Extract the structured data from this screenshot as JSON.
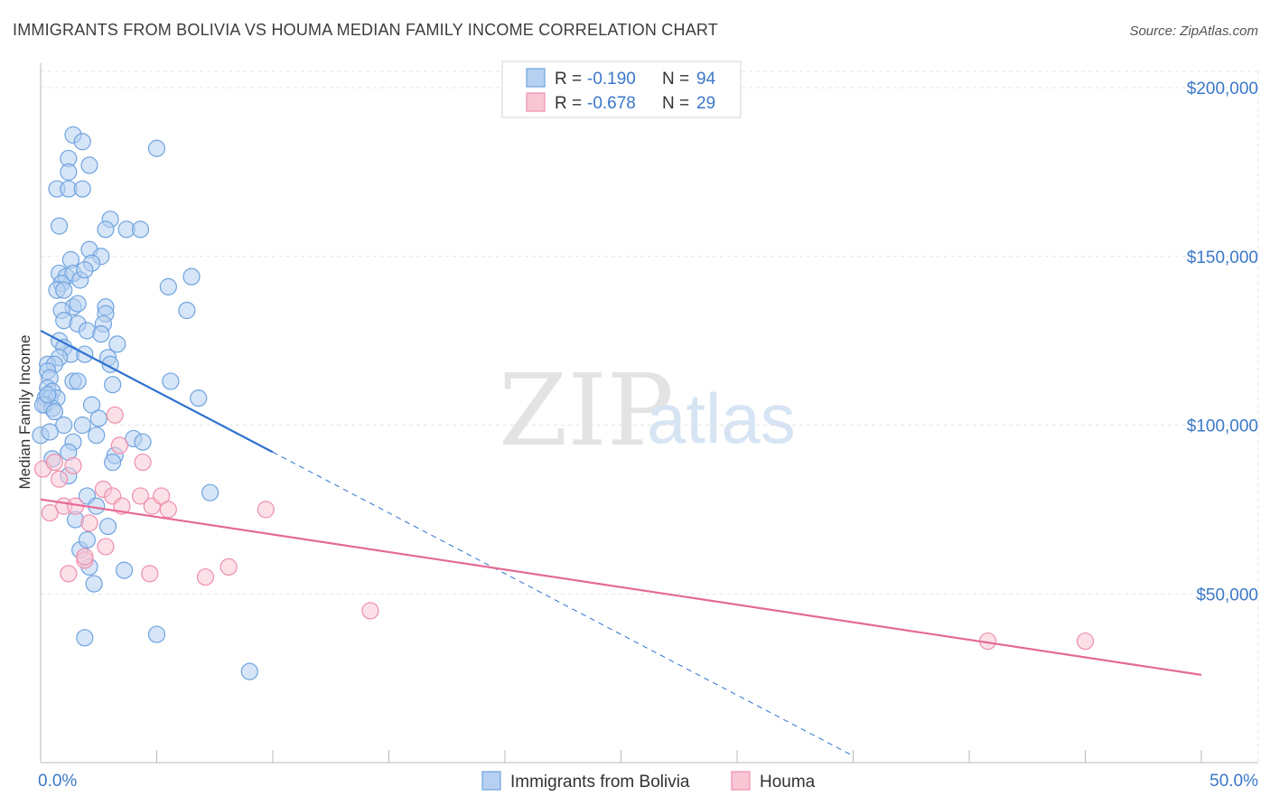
{
  "chart_data": {
    "type": "scatter",
    "title": "IMMIGRANTS FROM BOLIVIA VS HOUMA MEDIAN FAMILY INCOME CORRELATION CHART",
    "source": "Source: ZipAtlas.com",
    "xlabel": "",
    "ylabel": "Median Family Income",
    "xlim": [
      0,
      50
    ],
    "ylim": [
      0,
      210000
    ],
    "x_tick_labels": [
      "0.0%",
      "50.0%"
    ],
    "y_tick_labels": [
      "$50,000",
      "$100,000",
      "$150,000",
      "$200,000"
    ],
    "y_ticks": [
      50000,
      100000,
      150000,
      200000
    ],
    "grid": true,
    "watermark": {
      "zip": "ZIP",
      "atlas": "atlas"
    },
    "legend": {
      "entries": [
        {
          "r_label": "R =",
          "r_value": "-0.190",
          "n_label": "N =",
          "n_value": "94"
        },
        {
          "r_label": "R =",
          "r_value": "-0.678",
          "n_label": "N =",
          "n_value": "29"
        }
      ]
    },
    "series": [
      {
        "name": "Immigrants from Bolivia",
        "color": "#6fa3e0",
        "fill": "#b5d0f0",
        "line_color": "#2f72cf",
        "trend": {
          "x0": 0,
          "y0": 128000,
          "x1": 10,
          "y1": 92000,
          "dash_to_x": 35
        },
        "points": [
          [
            1.4,
            186000
          ],
          [
            1.8,
            184000
          ],
          [
            5.0,
            182000
          ],
          [
            1.2,
            179000
          ],
          [
            2.1,
            177000
          ],
          [
            1.2,
            175000
          ],
          [
            0.7,
            170000
          ],
          [
            1.2,
            170000
          ],
          [
            1.8,
            170000
          ],
          [
            0.8,
            159000
          ],
          [
            3.0,
            161000
          ],
          [
            2.8,
            158000
          ],
          [
            3.7,
            158000
          ],
          [
            4.3,
            158000
          ],
          [
            2.1,
            152000
          ],
          [
            1.3,
            149000
          ],
          [
            2.6,
            150000
          ],
          [
            2.2,
            148000
          ],
          [
            6.5,
            144000
          ],
          [
            0.8,
            145000
          ],
          [
            1.1,
            144000
          ],
          [
            1.4,
            145000
          ],
          [
            0.9,
            142000
          ],
          [
            1.7,
            143000
          ],
          [
            1.9,
            146000
          ],
          [
            0.7,
            140000
          ],
          [
            1.0,
            140000
          ],
          [
            5.5,
            141000
          ],
          [
            1.4,
            135000
          ],
          [
            1.6,
            136000
          ],
          [
            2.8,
            135000
          ],
          [
            0.9,
            134000
          ],
          [
            6.3,
            134000
          ],
          [
            2.8,
            133000
          ],
          [
            1.0,
            131000
          ],
          [
            1.6,
            130000
          ],
          [
            2.7,
            130000
          ],
          [
            2.0,
            128000
          ],
          [
            2.6,
            127000
          ],
          [
            0.8,
            125000
          ],
          [
            3.3,
            124000
          ],
          [
            1.0,
            123000
          ],
          [
            1.3,
            121000
          ],
          [
            1.9,
            121000
          ],
          [
            0.8,
            120000
          ],
          [
            2.9,
            120000
          ],
          [
            3.0,
            118000
          ],
          [
            0.3,
            118000
          ],
          [
            0.6,
            118000
          ],
          [
            0.3,
            116000
          ],
          [
            0.4,
            114000
          ],
          [
            1.4,
            113000
          ],
          [
            1.6,
            113000
          ],
          [
            3.1,
            112000
          ],
          [
            5.6,
            113000
          ],
          [
            0.3,
            111000
          ],
          [
            0.5,
            110000
          ],
          [
            0.2,
            108000
          ],
          [
            0.4,
            108000
          ],
          [
            0.7,
            108000
          ],
          [
            6.8,
            108000
          ],
          [
            0.2,
            106000
          ],
          [
            2.2,
            106000
          ],
          [
            0.5,
            105000
          ],
          [
            2.5,
            102000
          ],
          [
            1.8,
            100000
          ],
          [
            0.0,
            97000
          ],
          [
            2.4,
            97000
          ],
          [
            4.0,
            96000
          ],
          [
            4.4,
            95000
          ],
          [
            1.4,
            95000
          ],
          [
            3.2,
            91000
          ],
          [
            3.1,
            89000
          ],
          [
            0.5,
            90000
          ],
          [
            1.2,
            85000
          ],
          [
            7.3,
            80000
          ],
          [
            2.0,
            79000
          ],
          [
            2.4,
            76000
          ],
          [
            1.5,
            72000
          ],
          [
            2.9,
            70000
          ],
          [
            1.7,
            63000
          ],
          [
            2.1,
            58000
          ],
          [
            3.6,
            57000
          ],
          [
            2.3,
            53000
          ],
          [
            1.9,
            37000
          ],
          [
            5.0,
            38000
          ],
          [
            9.0,
            27000
          ],
          [
            0.1,
            106000
          ],
          [
            0.3,
            109000
          ],
          [
            0.6,
            104000
          ],
          [
            1.2,
            92000
          ],
          [
            2.0,
            66000
          ],
          [
            1.0,
            100000
          ],
          [
            0.4,
            98000
          ]
        ]
      },
      {
        "name": "Houma",
        "color": "#ee8fab",
        "fill": "#f8c6d5",
        "line_color": "#e46a95",
        "trend": {
          "x0": 0,
          "y0": 78000,
          "x1": 50,
          "y1": 26000
        },
        "points": [
          [
            0.1,
            87000
          ],
          [
            0.6,
            89000
          ],
          [
            0.8,
            84000
          ],
          [
            0.4,
            74000
          ],
          [
            1.0,
            76000
          ],
          [
            1.5,
            76000
          ],
          [
            2.1,
            71000
          ],
          [
            2.7,
            81000
          ],
          [
            3.1,
            79000
          ],
          [
            3.5,
            76000
          ],
          [
            4.3,
            79000
          ],
          [
            4.8,
            76000
          ],
          [
            5.2,
            79000
          ],
          [
            5.5,
            75000
          ],
          [
            3.2,
            103000
          ],
          [
            3.4,
            94000
          ],
          [
            4.4,
            89000
          ],
          [
            1.4,
            88000
          ],
          [
            1.9,
            60000
          ],
          [
            2.8,
            64000
          ],
          [
            1.2,
            56000
          ],
          [
            4.7,
            56000
          ],
          [
            7.1,
            55000
          ],
          [
            8.1,
            58000
          ],
          [
            9.7,
            75000
          ],
          [
            14.2,
            45000
          ],
          [
            40.8,
            36000
          ],
          [
            45.0,
            36000
          ],
          [
            1.9,
            61000
          ]
        ]
      }
    ]
  }
}
